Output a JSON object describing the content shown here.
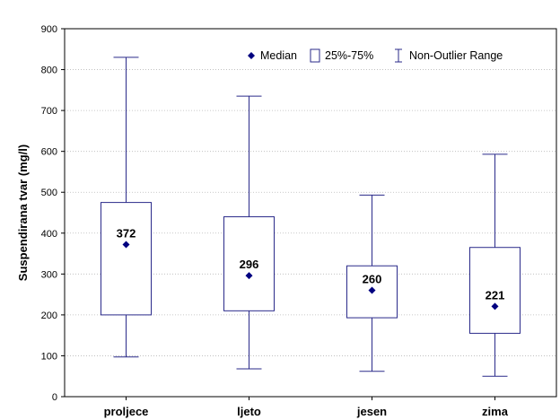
{
  "chart_data": {
    "type": "boxplot",
    "ylabel": "Suspendirana tvar (mg/l)",
    "xlabel": "",
    "ylim": [
      0,
      900
    ],
    "yticks": [
      0,
      100,
      200,
      300,
      400,
      500,
      600,
      700,
      800,
      900
    ],
    "grid": true,
    "legend_position": "top-right",
    "legend": {
      "median": "Median",
      "box": "25%-75%",
      "whisker": "Non-Outlier Range"
    },
    "categories": [
      "proljece",
      "ljeto",
      "jesen",
      "zima"
    ],
    "median": [
      372,
      296,
      260,
      221
    ],
    "q1": [
      200,
      210,
      193,
      155
    ],
    "q3": [
      475,
      440,
      320,
      365
    ],
    "whisker_low": [
      97,
      68,
      62,
      50
    ],
    "whisker_high": [
      830,
      735,
      493,
      593
    ],
    "value_labels": [
      "372",
      "296",
      "260",
      "221"
    ]
  },
  "colors": {
    "box": "#2a2a8a",
    "median_marker": "#000080",
    "grid": "#b8b8b8",
    "axis": "#000000"
  }
}
